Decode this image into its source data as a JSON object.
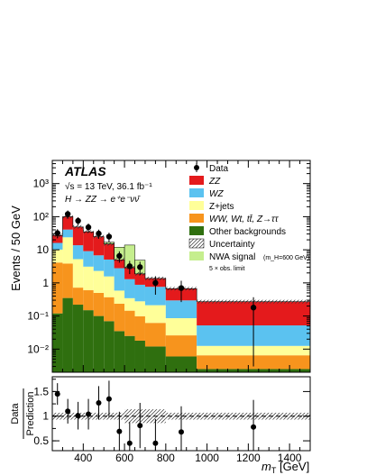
{
  "chart_data": [
    {
      "type": "histogram-stacked",
      "experiment": "ATLAS",
      "energy_lumi": "√s = 13 TeV, 36.1 fb⁻¹",
      "channel": "H → ZZ → e⁺e⁻νν̄",
      "xlabel": "",
      "ylabel": "Events / 50 GeV",
      "yscale": "log",
      "ylim": [
        0.002,
        5000
      ],
      "xlim": [
        250,
        1500
      ],
      "bin_edges": [
        250,
        300,
        350,
        400,
        450,
        500,
        550,
        600,
        650,
        700,
        800,
        950,
        1500
      ],
      "series": [
        {
          "name": "Other backgrounds",
          "color": "#2f6f0f",
          "values": [
            0.12,
            0.35,
            0.22,
            0.15,
            0.1,
            0.07,
            0.035,
            0.025,
            0.018,
            0.012,
            0.006,
            0.0025
          ]
        },
        {
          "name": "WW, Wt, tt̄, Z→ττ",
          "color": "#f7941d",
          "values": [
            4.0,
            3.5,
            0.5,
            0.45,
            0.4,
            0.3,
            0.2,
            0.12,
            0.08,
            0.05,
            0.02,
            0.004
          ]
        },
        {
          "name": "Z+jets",
          "color": "#ffff99",
          "values": [
            6.0,
            20,
            4.5,
            2.5,
            1.8,
            1.2,
            0.35,
            0.2,
            0.18,
            0.15,
            0.06,
            0.006
          ]
        },
        {
          "name": "WZ",
          "color": "#5bc2f0",
          "values": [
            6,
            17,
            8.5,
            6,
            4.5,
            3.5,
            2.2,
            0.95,
            0.6,
            0.55,
            0.21,
            0.0395
          ]
        },
        {
          "name": "ZZ",
          "color": "#e41a1c",
          "values": [
            10.88,
            59.15,
            35.28,
            25.9,
            18.2,
            9.93,
            2.2,
            1.6,
            1.0,
            0.6,
            0.37,
            0.22
          ]
        }
      ],
      "signal": {
        "name": "NWA signal",
        "sublabel": "(m_H=600 GeV)",
        "note": "5 × obs. limit",
        "color": "#c5ee8e",
        "values": [
          0,
          0,
          0,
          0,
          0,
          2.0,
          7.0,
          11.0,
          3.0,
          0,
          0,
          0
        ]
      },
      "uncertainty_label": "Uncertainty",
      "data": {
        "name": "Data",
        "x": [
          275,
          325,
          375,
          425,
          475,
          525,
          575,
          625,
          675,
          750,
          875,
          1225
        ],
        "y": [
          32,
          120,
          75,
          48,
          31,
          25,
          6.5,
          3.2,
          3.0,
          1.0,
          0.7,
          0.18
        ]
      },
      "legend": [
        "Data",
        "ZZ",
        "WZ",
        "Z+jets",
        "WW, Wt, tt̄, Z→ττ",
        "Other backgrounds",
        "Uncertainty",
        "NWA signal"
      ],
      "legend_labels": {
        "data": "Data",
        "zz": "ZZ",
        "wz": "WZ",
        "zjets": "Z+jets",
        "ww": "WW, Wt, tt̄, Z→ττ",
        "other": "Other backgrounds",
        "unc": "Uncertainty",
        "nwa": "NWA signal",
        "nwa_sub": "(m_H=600 GeV)",
        "nwa_note": "5 × obs. limit"
      },
      "ytick_labels": [
        "10⁻²",
        "10⁻¹",
        "1",
        "10",
        "10²",
        "10³"
      ]
    },
    {
      "type": "ratio",
      "xlabel": "m_T [GeV]",
      "ylabel_top": "Data",
      "ylabel_bottom": "Prediction",
      "ylim": [
        0.3,
        1.8
      ],
      "yticks": [
        0.5,
        1,
        1.5
      ],
      "xticks": [
        400,
        600,
        800,
        1000,
        1200,
        1400
      ],
      "ratio_x": [
        275,
        325,
        375,
        425,
        475,
        525,
        575,
        625,
        675,
        750,
        875,
        1225
      ],
      "ratio_y": [
        1.45,
        1.1,
        1.01,
        1.04,
        1.27,
        1.35,
        0.69,
        0.45,
        0.81,
        0.45,
        0.68,
        0.78
      ]
    }
  ],
  "labels": {
    "atlas": "ATLAS",
    "xlabel_m": "m",
    "xlabel_sub": "T",
    "xlabel_unit": " [GeV]"
  }
}
